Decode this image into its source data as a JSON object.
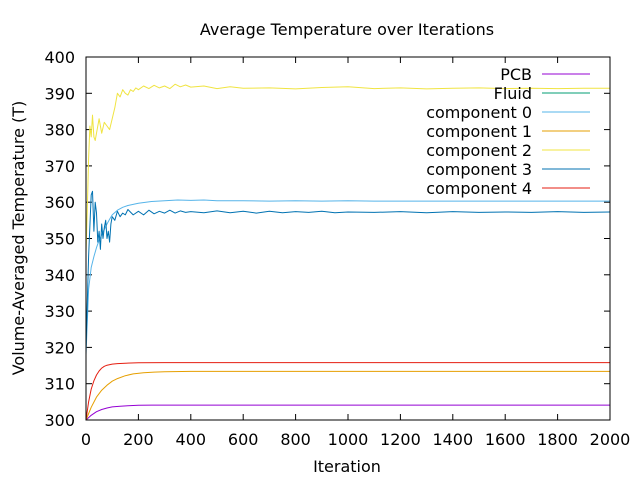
{
  "chart_data": {
    "type": "line",
    "title": "Average Temperature over Iterations",
    "xlabel": "Iteration",
    "ylabel": "Volume-Averaged Temperature (T)",
    "xlim": [
      0,
      2000
    ],
    "ylim": [
      300,
      400
    ],
    "xticks": [
      0,
      200,
      400,
      600,
      800,
      1000,
      1200,
      1400,
      1600,
      1800,
      2000
    ],
    "yticks": [
      300,
      310,
      320,
      330,
      340,
      350,
      360,
      370,
      380,
      390,
      400
    ],
    "grid": false,
    "legend_position": "top-right",
    "series": [
      {
        "name": "PCB",
        "color": "#9400d3",
        "x": [
          0,
          20,
          40,
          60,
          80,
          100,
          130,
          160,
          200,
          250,
          300,
          400,
          600,
          1000,
          1500,
          2000
        ],
        "y": [
          300,
          301.3,
          302.3,
          302.9,
          303.3,
          303.6,
          303.8,
          303.95,
          304.05,
          304.1,
          304.1,
          304.1,
          304.1,
          304.1,
          304.1,
          304.1
        ]
      },
      {
        "name": "Fluid",
        "color": "#009e73",
        "x": [
          0,
          2000
        ],
        "y": [
          300,
          300
        ]
      },
      {
        "name": "component 0",
        "color": "#56b4e9",
        "x": [
          0,
          10,
          20,
          30,
          40,
          50,
          60,
          70,
          80,
          90,
          100,
          120,
          140,
          160,
          200,
          250,
          300,
          350,
          400,
          450,
          500,
          600,
          700,
          800,
          900,
          1000,
          1100,
          1200,
          1300,
          1400,
          1500,
          1600,
          1700,
          1800,
          1900,
          2000
        ],
        "y": [
          318,
          336,
          342,
          345,
          347.5,
          349.5,
          351,
          352.5,
          354,
          355.3,
          356.5,
          357.8,
          358.6,
          359.1,
          359.7,
          360.2,
          360.4,
          360.6,
          360.5,
          360.6,
          360.4,
          360.4,
          360.3,
          360.4,
          360.3,
          360.4,
          360.3,
          360.3,
          360.3,
          360.3,
          360.3,
          360.3,
          360.3,
          360.3,
          360.3,
          360.3
        ]
      },
      {
        "name": "component 1",
        "color": "#e69f00",
        "x": [
          0,
          20,
          40,
          60,
          80,
          100,
          120,
          150,
          180,
          220,
          260,
          300,
          400,
          600,
          1000,
          1500,
          2000
        ],
        "y": [
          300,
          303.5,
          306.3,
          308.2,
          309.6,
          310.7,
          311.4,
          312.2,
          312.7,
          313.0,
          313.2,
          313.3,
          313.4,
          313.4,
          313.4,
          313.4,
          313.4
        ]
      },
      {
        "name": "component 2",
        "color": "#f0e442",
        "x": [
          0,
          5,
          10,
          15,
          20,
          25,
          30,
          35,
          40,
          45,
          50,
          60,
          70,
          80,
          90,
          100,
          110,
          120,
          130,
          140,
          150,
          160,
          170,
          180,
          190,
          200,
          220,
          240,
          260,
          280,
          300,
          320,
          340,
          360,
          380,
          400,
          450,
          500,
          550,
          600,
          700,
          800,
          900,
          1000,
          1100,
          1200,
          1300,
          1400,
          1500,
          1600,
          1700,
          1800,
          1900,
          2000
        ],
        "y": [
          346,
          358,
          372,
          381,
          378,
          384,
          378,
          377,
          379,
          381,
          383,
          379,
          382,
          381,
          380,
          383,
          386,
          390,
          389,
          391,
          390,
          389.5,
          391,
          390.5,
          391.5,
          391,
          392,
          391.3,
          392.2,
          391.5,
          392,
          391.3,
          392.5,
          391.8,
          392.3,
          391.7,
          392,
          391.3,
          391.8,
          391.4,
          391.5,
          391.2,
          391.6,
          391.8,
          391.3,
          391.5,
          391.2,
          391.4,
          391.5,
          391.3,
          391.4,
          391.3,
          391.4,
          391.4
        ]
      },
      {
        "name": "component 3",
        "color": "#0072b2",
        "x": [
          0,
          10,
          20,
          25,
          30,
          35,
          40,
          45,
          50,
          55,
          60,
          65,
          70,
          75,
          80,
          85,
          90,
          95,
          100,
          110,
          120,
          130,
          140,
          150,
          160,
          180,
          200,
          220,
          240,
          260,
          280,
          300,
          320,
          340,
          360,
          380,
          400,
          450,
          500,
          550,
          600,
          650,
          700,
          750,
          800,
          850,
          900,
          950,
          1000,
          1100,
          1200,
          1300,
          1400,
          1500,
          1600,
          1700,
          1800,
          1900,
          2000
        ],
        "y": [
          320,
          345,
          362,
          363,
          352,
          360,
          357,
          349,
          352,
          347,
          354,
          350,
          353,
          355,
          350,
          352,
          349,
          354,
          356,
          355,
          357.5,
          356,
          357,
          356.5,
          358,
          356.5,
          357.5,
          356.5,
          357.8,
          356.8,
          357.5,
          357,
          357.8,
          357,
          357.6,
          357.2,
          357.4,
          357.1,
          357.6,
          357.1,
          357.5,
          357.0,
          357.5,
          357.1,
          357.4,
          357.2,
          357.5,
          357.1,
          357.3,
          357.2,
          357.4,
          357.1,
          357.4,
          357.2,
          357.3,
          357.2,
          357.4,
          357.2,
          357.3
        ]
      },
      {
        "name": "component 4",
        "color": "#e51e10",
        "x": [
          0,
          10,
          20,
          30,
          40,
          50,
          60,
          70,
          80,
          100,
          120,
          150,
          200,
          300,
          500,
          1000,
          1500,
          2000
        ],
        "y": [
          300,
          305,
          308.5,
          310.8,
          312.4,
          313.5,
          314.3,
          314.8,
          315.1,
          315.4,
          315.55,
          315.65,
          315.75,
          315.8,
          315.8,
          315.8,
          315.8,
          315.8
        ]
      }
    ]
  }
}
